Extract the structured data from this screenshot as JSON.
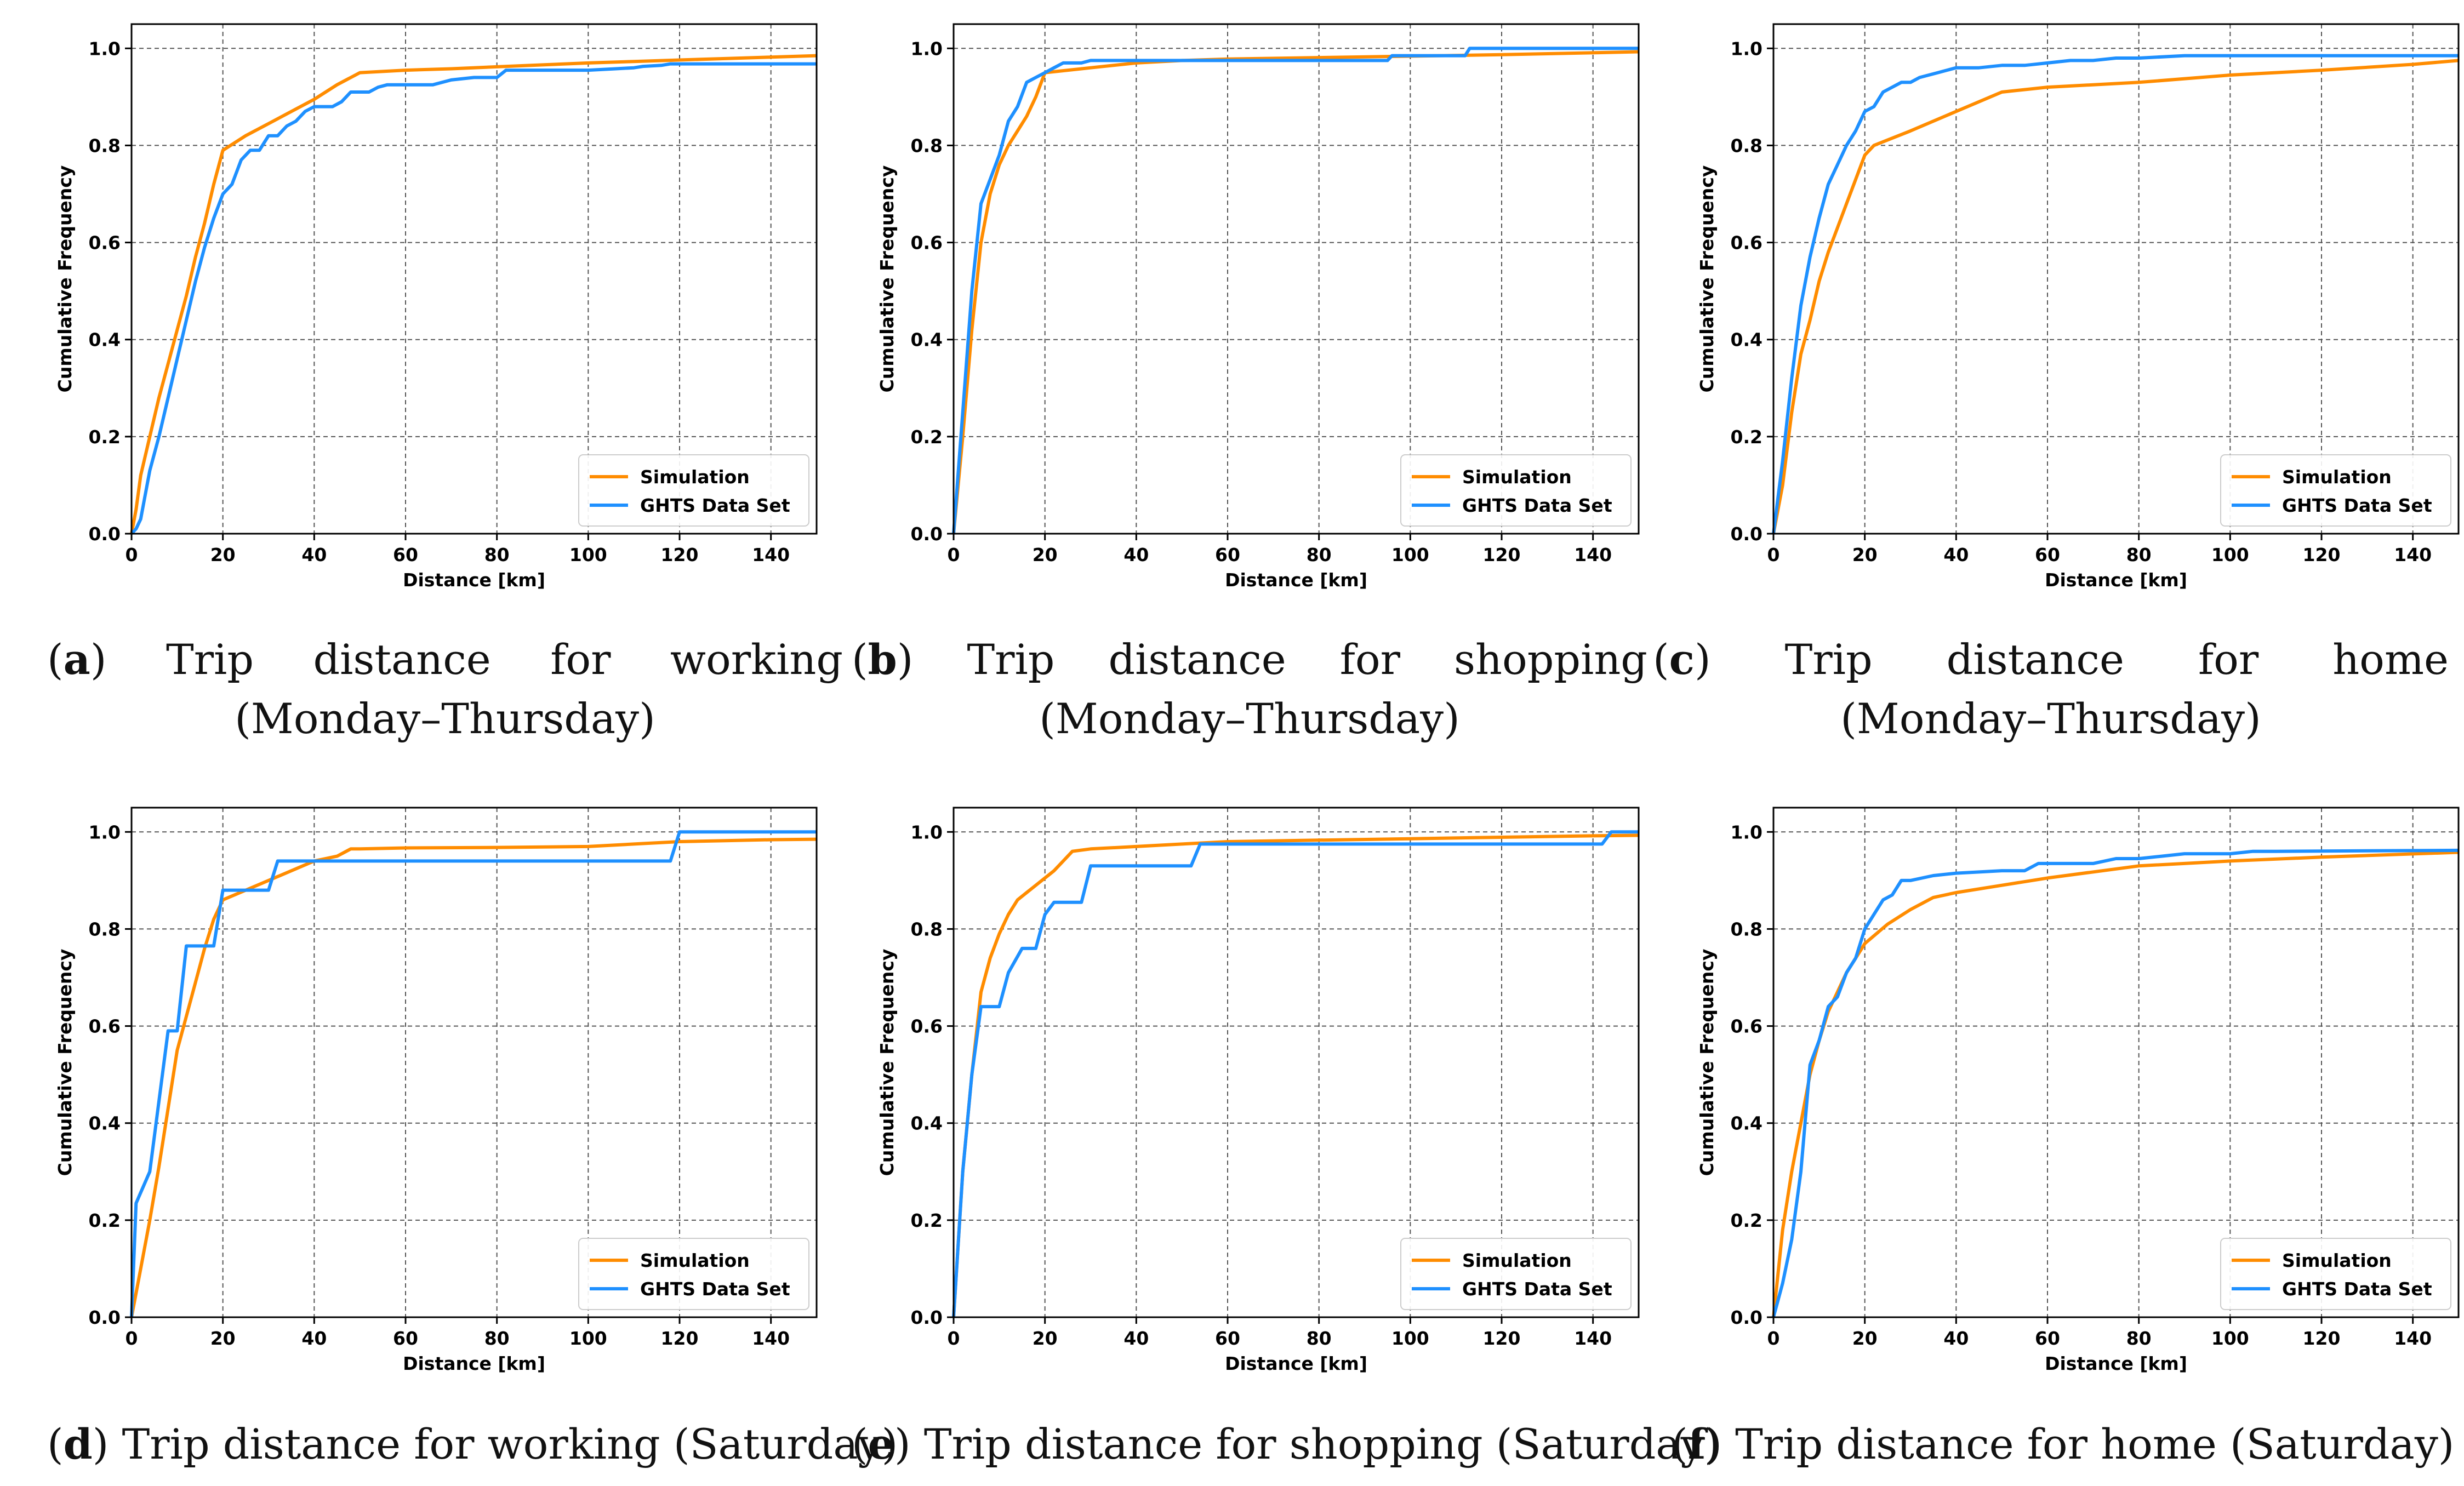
{
  "colors": {
    "simulation": "#ff8c00",
    "ghts": "#1e90ff",
    "grid": "#555555"
  },
  "chart_data": [
    {
      "id": "a",
      "type": "line",
      "caption_letter": "a",
      "caption_words": [
        "Trip",
        "distance",
        "for",
        "working"
      ],
      "caption_line2": "(Monday–Thursday)",
      "xlabel": "Distance [km]",
      "ylabel": "Cumulative Frequency",
      "xlim": [
        0,
        150
      ],
      "ylim": [
        0,
        1.05
      ],
      "xticks": [
        "0",
        "20",
        "40",
        "60",
        "80",
        "100",
        "120",
        "140"
      ],
      "yticks": [
        "0.0",
        "0.2",
        "0.4",
        "0.6",
        "0.8",
        "1.0"
      ],
      "grid": true,
      "legend_position": "lower-right",
      "series": [
        {
          "name": "Simulation",
          "color": "#ff8c00",
          "x": [
            0,
            1,
            2,
            4,
            6,
            8,
            10,
            12,
            14,
            16,
            18,
            20,
            25,
            30,
            35,
            40,
            45,
            50,
            60,
            70,
            80,
            90,
            100,
            110,
            120,
            130,
            140,
            150
          ],
          "y": [
            0,
            0.05,
            0.12,
            0.2,
            0.28,
            0.35,
            0.42,
            0.49,
            0.57,
            0.64,
            0.72,
            0.79,
            0.82,
            0.845,
            0.87,
            0.895,
            0.925,
            0.95,
            0.955,
            0.958,
            0.962,
            0.966,
            0.97,
            0.973,
            0.976,
            0.979,
            0.982,
            0.985
          ]
        },
        {
          "name": "GHTS Data Set",
          "color": "#1e90ff",
          "x": [
            0,
            1,
            2,
            3,
            4,
            6,
            8,
            10,
            12,
            14,
            16,
            18,
            20,
            22,
            24,
            26,
            28,
            30,
            32,
            34,
            36,
            38,
            40,
            44,
            46,
            48,
            52,
            54,
            56,
            66,
            70,
            75,
            80,
            82,
            100,
            106,
            110,
            112,
            116,
            118,
            150
          ],
          "y": [
            0,
            0.01,
            0.03,
            0.08,
            0.13,
            0.2,
            0.28,
            0.36,
            0.44,
            0.52,
            0.59,
            0.65,
            0.7,
            0.72,
            0.77,
            0.79,
            0.79,
            0.82,
            0.82,
            0.84,
            0.85,
            0.87,
            0.88,
            0.88,
            0.89,
            0.91,
            0.91,
            0.92,
            0.925,
            0.925,
            0.935,
            0.94,
            0.94,
            0.955,
            0.955,
            0.958,
            0.96,
            0.963,
            0.965,
            0.968,
            0.968
          ]
        }
      ]
    },
    {
      "id": "b",
      "type": "line",
      "caption_letter": "b",
      "caption_words": [
        "Trip",
        "distance",
        "for",
        "shopping"
      ],
      "caption_line2": "(Monday–Thursday)",
      "xlabel": "Distance [km]",
      "ylabel": "Cumulative Frequency",
      "xlim": [
        0,
        150
      ],
      "ylim": [
        0,
        1.05
      ],
      "xticks": [
        "0",
        "20",
        "40",
        "60",
        "80",
        "100",
        "120",
        "140"
      ],
      "yticks": [
        "0.0",
        "0.2",
        "0.4",
        "0.6",
        "0.8",
        "1.0"
      ],
      "grid": true,
      "legend_position": "lower-right",
      "series": [
        {
          "name": "Simulation",
          "color": "#ff8c00",
          "x": [
            0,
            2,
            4,
            6,
            8,
            10,
            12,
            14,
            16,
            18,
            20,
            30,
            40,
            50,
            60,
            80,
            100,
            120,
            150
          ],
          "y": [
            0,
            0.2,
            0.42,
            0.6,
            0.7,
            0.76,
            0.8,
            0.83,
            0.86,
            0.9,
            0.95,
            0.96,
            0.97,
            0.975,
            0.978,
            0.981,
            0.984,
            0.987,
            0.993
          ]
        },
        {
          "name": "GHTS Data Set",
          "color": "#1e90ff",
          "x": [
            0,
            2,
            4,
            6,
            8,
            10,
            12,
            14,
            16,
            18,
            20,
            22,
            24,
            26,
            28,
            30,
            40,
            95,
            96,
            112,
            113,
            150
          ],
          "y": [
            0,
            0.25,
            0.5,
            0.68,
            0.73,
            0.78,
            0.85,
            0.88,
            0.93,
            0.94,
            0.95,
            0.96,
            0.97,
            0.97,
            0.97,
            0.975,
            0.975,
            0.975,
            0.985,
            0.985,
            1.0,
            1.0
          ]
        }
      ]
    },
    {
      "id": "c",
      "type": "line",
      "caption_letter": "c",
      "caption_words": [
        "Trip",
        "distance",
        "for",
        "home"
      ],
      "caption_line2": "(Monday–Thursday)",
      "xlabel": "Distance [km]",
      "ylabel": "Cumulative Frequency",
      "xlim": [
        0,
        150
      ],
      "ylim": [
        0,
        1.05
      ],
      "xticks": [
        "0",
        "20",
        "40",
        "60",
        "80",
        "100",
        "120",
        "140"
      ],
      "yticks": [
        "0.0",
        "0.2",
        "0.4",
        "0.6",
        "0.8",
        "1.0"
      ],
      "grid": true,
      "legend_position": "lower-right",
      "series": [
        {
          "name": "Simulation",
          "color": "#ff8c00",
          "x": [
            0,
            2,
            4,
            6,
            8,
            10,
            12,
            14,
            16,
            18,
            20,
            22,
            30,
            40,
            50,
            60,
            80,
            100,
            120,
            140,
            150
          ],
          "y": [
            0,
            0.1,
            0.25,
            0.37,
            0.44,
            0.52,
            0.58,
            0.63,
            0.68,
            0.73,
            0.78,
            0.8,
            0.83,
            0.87,
            0.91,
            0.92,
            0.93,
            0.945,
            0.955,
            0.967,
            0.975
          ]
        },
        {
          "name": "GHTS Data Set",
          "color": "#1e90ff",
          "x": [
            0,
            2,
            4,
            6,
            8,
            10,
            12,
            14,
            16,
            18,
            20,
            22,
            24,
            26,
            28,
            30,
            32,
            34,
            36,
            38,
            40,
            45,
            50,
            55,
            60,
            65,
            70,
            75,
            80,
            90,
            100,
            120,
            150
          ],
          "y": [
            0,
            0.15,
            0.32,
            0.47,
            0.57,
            0.65,
            0.72,
            0.76,
            0.8,
            0.83,
            0.87,
            0.88,
            0.91,
            0.92,
            0.93,
            0.93,
            0.94,
            0.945,
            0.95,
            0.955,
            0.96,
            0.96,
            0.965,
            0.965,
            0.97,
            0.975,
            0.975,
            0.98,
            0.98,
            0.985,
            0.985,
            0.985,
            0.985
          ]
        }
      ]
    },
    {
      "id": "d",
      "type": "line",
      "caption_letter": "d",
      "caption_text": "Trip distance for working (Saturday)",
      "xlabel": "Distance [km]",
      "ylabel": "Cumulative Frequency",
      "xlim": [
        0,
        150
      ],
      "ylim": [
        0,
        1.05
      ],
      "xticks": [
        "0",
        "20",
        "40",
        "60",
        "80",
        "100",
        "120",
        "140"
      ],
      "yticks": [
        "0.0",
        "0.2",
        "0.4",
        "0.6",
        "0.8",
        "1.0"
      ],
      "grid": true,
      "legend_position": "lower-right",
      "series": [
        {
          "name": "Simulation",
          "color": "#ff8c00",
          "x": [
            0,
            2,
            4,
            6,
            8,
            10,
            12,
            14,
            16,
            18,
            20,
            25,
            30,
            35,
            40,
            45,
            48,
            50,
            60,
            80,
            100,
            110,
            120,
            130,
            140,
            150
          ],
          "y": [
            0,
            0.1,
            0.2,
            0.31,
            0.43,
            0.55,
            0.62,
            0.69,
            0.76,
            0.82,
            0.86,
            0.88,
            0.9,
            0.92,
            0.94,
            0.95,
            0.965,
            0.965,
            0.967,
            0.968,
            0.97,
            0.975,
            0.98,
            0.982,
            0.984,
            0.985
          ]
        },
        {
          "name": "GHTS Data Set",
          "color": "#1e90ff",
          "x": [
            0,
            1,
            4,
            8,
            10,
            12,
            15,
            18,
            20,
            25,
            30,
            32,
            40,
            118,
            120,
            150
          ],
          "y": [
            0,
            0.235,
            0.3,
            0.59,
            0.59,
            0.765,
            0.765,
            0.765,
            0.88,
            0.88,
            0.88,
            0.94,
            0.94,
            0.94,
            1.0,
            1.0
          ]
        }
      ]
    },
    {
      "id": "e",
      "type": "line",
      "caption_letter": "e",
      "caption_text": "Trip distance for shopping (Saturday)",
      "xlabel": "Distance [km]",
      "ylabel": "Cumulative Frequency",
      "xlim": [
        0,
        150
      ],
      "ylim": [
        0,
        1.05
      ],
      "xticks": [
        "0",
        "20",
        "40",
        "60",
        "80",
        "100",
        "120",
        "140"
      ],
      "yticks": [
        "0.0",
        "0.2",
        "0.4",
        "0.6",
        "0.8",
        "1.0"
      ],
      "grid": true,
      "legend_position": "lower-right",
      "series": [
        {
          "name": "Simulation",
          "color": "#ff8c00",
          "x": [
            0,
            2,
            4,
            6,
            8,
            10,
            12,
            14,
            16,
            18,
            20,
            22,
            24,
            26,
            30,
            40,
            50,
            60,
            80,
            100,
            120,
            140,
            150
          ],
          "y": [
            0,
            0.3,
            0.5,
            0.67,
            0.74,
            0.79,
            0.83,
            0.86,
            0.875,
            0.89,
            0.905,
            0.92,
            0.94,
            0.96,
            0.965,
            0.97,
            0.975,
            0.98,
            0.983,
            0.986,
            0.989,
            0.992,
            0.993
          ]
        },
        {
          "name": "GHTS Data Set",
          "color": "#1e90ff",
          "x": [
            0,
            2,
            4,
            6,
            10,
            12,
            15,
            18,
            20,
            22,
            26,
            28,
            30,
            35,
            52,
            54,
            60,
            142,
            144,
            150
          ],
          "y": [
            0,
            0.3,
            0.5,
            0.64,
            0.64,
            0.71,
            0.76,
            0.76,
            0.83,
            0.855,
            0.855,
            0.855,
            0.93,
            0.93,
            0.93,
            0.975,
            0.975,
            0.975,
            1.0,
            1.0
          ]
        }
      ]
    },
    {
      "id": "f",
      "type": "line",
      "caption_letter": "f",
      "caption_text": "Trip distance for home (Saturday)",
      "xlabel": "Distance [km]",
      "ylabel": "Cumulative Frequency",
      "xlim": [
        0,
        150
      ],
      "ylim": [
        0,
        1.05
      ],
      "xticks": [
        "0",
        "20",
        "40",
        "60",
        "80",
        "100",
        "120",
        "140"
      ],
      "yticks": [
        "0.0",
        "0.2",
        "0.4",
        "0.6",
        "0.8",
        "1.0"
      ],
      "grid": true,
      "legend_position": "lower-right",
      "series": [
        {
          "name": "Simulation",
          "color": "#ff8c00",
          "x": [
            0,
            2,
            4,
            6,
            8,
            10,
            12,
            14,
            16,
            18,
            20,
            25,
            30,
            35,
            40,
            50,
            60,
            80,
            100,
            120,
            150
          ],
          "y": [
            0,
            0.18,
            0.3,
            0.4,
            0.5,
            0.57,
            0.63,
            0.67,
            0.71,
            0.74,
            0.77,
            0.81,
            0.84,
            0.865,
            0.875,
            0.89,
            0.905,
            0.93,
            0.94,
            0.948,
            0.958
          ]
        },
        {
          "name": "GHTS Data Set",
          "color": "#1e90ff",
          "x": [
            0,
            2,
            4,
            6,
            8,
            10,
            12,
            14,
            16,
            18,
            20,
            22,
            24,
            26,
            28,
            30,
            35,
            40,
            50,
            55,
            58,
            60,
            70,
            75,
            80,
            85,
            90,
            100,
            105,
            110,
            150
          ],
          "y": [
            0,
            0.07,
            0.16,
            0.3,
            0.52,
            0.57,
            0.64,
            0.66,
            0.71,
            0.74,
            0.8,
            0.83,
            0.86,
            0.87,
            0.9,
            0.9,
            0.91,
            0.915,
            0.92,
            0.92,
            0.935,
            0.935,
            0.935,
            0.945,
            0.945,
            0.95,
            0.955,
            0.955,
            0.96,
            0.96,
            0.962
          ]
        }
      ]
    }
  ]
}
